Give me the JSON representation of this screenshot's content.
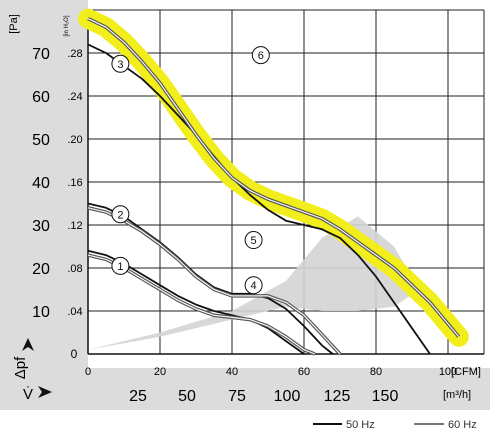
{
  "chart_data": {
    "type": "line",
    "x_unit_top": "[CFM]",
    "x_unit_bottom": "[m³/h]",
    "x_symbol": "V̇",
    "y_unit_left": "[Pa]",
    "y_unit_inner": "[in H₂O]",
    "y_symbol": "Δpf",
    "xlim": [
      0,
      110
    ],
    "ylim": [
      0,
      80
    ],
    "x_ticks_cfm": [
      "0",
      "20",
      "40",
      "60",
      "80",
      "100"
    ],
    "x_ticks_m3h": [
      "25",
      "50",
      "75",
      "100",
      "125",
      "150"
    ],
    "y_ticks_pa": [
      "0",
      "10",
      "20",
      "30",
      "40",
      "50",
      "60",
      "70"
    ],
    "y_ticks_inh2o": [
      "0",
      ".04",
      ".08",
      ".12",
      ".16",
      ".20",
      ".24",
      ".28"
    ],
    "grid": true,
    "legend": [
      {
        "label": "50 Hz",
        "color": "#111111"
      },
      {
        "label": "60 Hz",
        "color": "#777777"
      }
    ],
    "series": [
      {
        "label": "1",
        "freq": "50 Hz",
        "x": [
          0,
          5,
          10,
          15,
          20,
          25,
          30,
          35,
          40,
          45,
          50,
          55,
          60
        ],
        "y": [
          24,
          23,
          21,
          18.5,
          16,
          13.5,
          11.5,
          10,
          9,
          8,
          6,
          3,
          0
        ]
      },
      {
        "label": "2",
        "freq": "50 Hz",
        "x": [
          0,
          5,
          10,
          15,
          20,
          25,
          30,
          35,
          40,
          45,
          50,
          55,
          60,
          65,
          68
        ],
        "y": [
          35,
          34,
          32,
          29,
          26,
          22.5,
          18.5,
          15.5,
          14,
          14,
          13,
          10.5,
          6.5,
          2,
          0
        ]
      },
      {
        "label": "3",
        "freq": "50 Hz",
        "x": [
          0,
          5,
          10,
          15,
          20,
          25,
          30,
          35,
          40,
          45,
          50,
          55,
          60,
          65,
          70,
          75,
          80,
          85,
          90,
          95
        ],
        "y": [
          72,
          70,
          67,
          64,
          60,
          55.5,
          51,
          46,
          41,
          37,
          33.5,
          31,
          30,
          29,
          27,
          23,
          18,
          12,
          6,
          0
        ]
      },
      {
        "label": "4",
        "freq": "60 Hz",
        "x": [
          0,
          5,
          10,
          15,
          20,
          25,
          30,
          35,
          40,
          45,
          50,
          55,
          60,
          63
        ],
        "y": [
          23,
          22,
          20,
          17.5,
          15,
          12.5,
          10.5,
          9,
          8.5,
          8,
          6.5,
          4,
          1,
          0
        ]
      },
      {
        "label": "5",
        "freq": "60 Hz",
        "x": [
          0,
          5,
          10,
          15,
          20,
          25,
          30,
          35,
          40,
          45,
          50,
          55,
          60,
          65,
          70
        ],
        "y": [
          34,
          33,
          31,
          28.5,
          25.5,
          22,
          18,
          15,
          13.5,
          13.5,
          13.5,
          12,
          9,
          4.5,
          0
        ]
      },
      {
        "label": "6",
        "freq": "60 Hz",
        "x": [
          0,
          5,
          10,
          15,
          20,
          25,
          30,
          35,
          40,
          45,
          50,
          55,
          60,
          65,
          70,
          75,
          80,
          85,
          90,
          95,
          100,
          103
        ],
        "y": [
          78,
          76,
          72.5,
          68,
          63,
          57,
          51,
          45.5,
          41,
          38,
          36,
          34.5,
          33,
          31.5,
          29,
          26,
          23,
          20,
          16,
          12,
          7,
          4
        ]
      }
    ],
    "shaded_region": {
      "x": [
        0,
        20,
        40,
        55,
        65,
        75,
        85,
        92,
        85,
        75,
        65,
        55,
        45,
        35,
        20,
        0
      ],
      "y": [
        1,
        5,
        10,
        17,
        27,
        32,
        25,
        15,
        11,
        10,
        10,
        11,
        9,
        7,
        4,
        1
      ]
    },
    "yellow_band": {
      "x": [
        0,
        5,
        10,
        15,
        20,
        25,
        30,
        35,
        40,
        45,
        50,
        55,
        60,
        65,
        70,
        75,
        80,
        85,
        90,
        95,
        100,
        103
      ],
      "y": [
        78,
        76,
        72.5,
        68,
        63,
        57,
        51,
        45.5,
        41,
        38,
        36,
        34.5,
        33,
        31.5,
        29,
        26,
        23,
        20,
        16,
        12,
        7,
        4
      ]
    }
  }
}
